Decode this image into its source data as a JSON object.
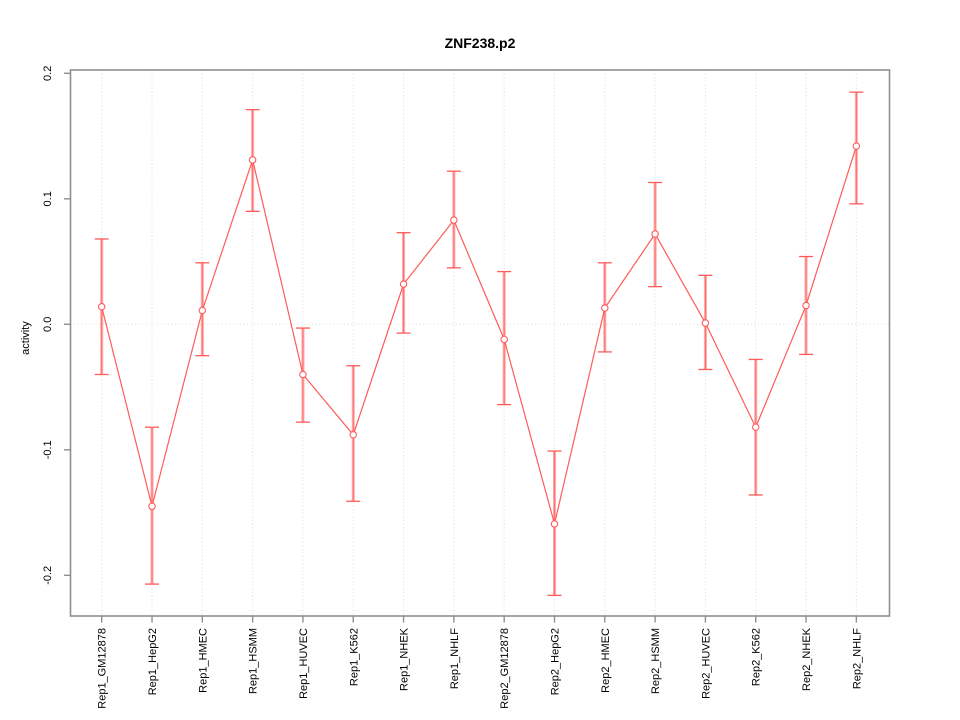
{
  "title": "ZNF238.p2",
  "axes": {
    "ylabel": "activity"
  },
  "colors": {
    "series": "#ff5a5a",
    "error_bar_shaft": "#ffa8a8",
    "frame": "#8f8f8f",
    "tick": "#8f8f8f",
    "gridline": "#d9d9d9",
    "text": "#000000",
    "background": "#ffffff"
  },
  "chart_data": {
    "type": "line",
    "title": "ZNF238.p2",
    "xlabel": "",
    "ylabel": "activity",
    "ylim": [
      -0.233,
      0.203
    ],
    "grid": {
      "vertical": "dotted at every category",
      "horizontal": "dotted at y=0 only"
    },
    "legend": "none",
    "yticks": [
      {
        "v": 0.2,
        "label": "0.2"
      },
      {
        "v": 0.1,
        "label": "0.1"
      },
      {
        "v": 0.0,
        "label": "0.0"
      },
      {
        "v": -0.1,
        "label": "-0.1"
      },
      {
        "v": -0.2,
        "label": "-0.2"
      }
    ],
    "categories": [
      "Rep1_GM12878",
      "Rep1_HepG2",
      "Rep1_HMEC",
      "Rep1_HSMM",
      "Rep1_HUVEC",
      "Rep1_K562",
      "Rep1_NHEK",
      "Rep1_NHLF",
      "Rep2_GM12878",
      "Rep2_HepG2",
      "Rep2_HMEC",
      "Rep2_HSMM",
      "Rep2_HUVEC",
      "Rep2_K562",
      "Rep2_NHEK",
      "Rep2_NHLF"
    ],
    "series": [
      {
        "name": "activity",
        "marker": "open-circle",
        "color": "#ff5a5a",
        "values": [
          0.014,
          -0.145,
          0.011,
          0.131,
          -0.04,
          -0.088,
          0.032,
          0.083,
          -0.012,
          -0.159,
          0.013,
          0.072,
          0.001,
          -0.082,
          0.015,
          0.142
        ],
        "error_low": [
          -0.04,
          -0.207,
          -0.025,
          0.09,
          -0.078,
          -0.141,
          -0.007,
          0.045,
          -0.064,
          -0.216,
          -0.022,
          0.03,
          -0.036,
          -0.136,
          -0.024,
          0.096
        ],
        "error_high": [
          0.068,
          -0.082,
          0.049,
          0.171,
          -0.003,
          -0.033,
          0.073,
          0.122,
          0.042,
          -0.101,
          0.049,
          0.113,
          0.039,
          -0.028,
          0.054,
          0.185
        ]
      }
    ]
  }
}
